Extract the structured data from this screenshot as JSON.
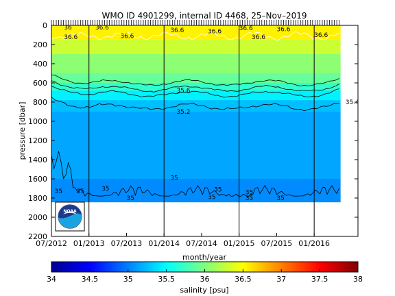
{
  "chart_data": {
    "type": "heatmap",
    "title": "WMO ID 4901299, internal ID 4468, 25–Nov–2019",
    "xlabel": "month/year",
    "ylabel": "pressure [dbar]",
    "colorbar_label": "salinity [psu]",
    "x_tick_labels": [
      "07/2012",
      "01/2013",
      "07/2013",
      "01/2014",
      "07/2014",
      "01/2015",
      "07/2015",
      "01/2016"
    ],
    "y_ticks": [
      0,
      200,
      400,
      600,
      800,
      1000,
      1200,
      1400,
      1600,
      1800,
      2000,
      2200
    ],
    "ylim": [
      2200,
      0
    ],
    "y_reversed": true,
    "xlim_months": [
      0,
      49
    ],
    "colorbar_ticks": [
      34,
      34.5,
      35,
      35.5,
      36,
      36.5,
      37,
      37.5,
      38
    ],
    "colorbar_range": [
      34,
      38
    ],
    "colormap": "jet",
    "year_boundaries": [
      "01/2013",
      "01/2014",
      "01/2015",
      "01/2016"
    ],
    "profile_coverage": {
      "start": "07/2012",
      "end": "05/2016",
      "max_pressure": 1840
    },
    "salinity_profile": [
      {
        "pressure": 0,
        "salinity": 36.6
      },
      {
        "pressure": 150,
        "salinity": 36.5
      },
      {
        "pressure": 300,
        "salinity": 36.1
      },
      {
        "pressure": 500,
        "salinity": 36.0
      },
      {
        "pressure": 600,
        "salinity": 35.8
      },
      {
        "pressure": 680,
        "salinity": 35.6
      },
      {
        "pressure": 780,
        "salinity": 35.3
      },
      {
        "pressure": 900,
        "salinity": 35.2
      },
      {
        "pressure": 1600,
        "salinity": 35.1
      },
      {
        "pressure": 1840,
        "salinity": 35.0
      }
    ],
    "contour_labels": [
      {
        "text": "36",
        "month": 2,
        "pressure": 20
      },
      {
        "text": "36.6",
        "month": 2,
        "pressure": 120
      },
      {
        "text": "36.6",
        "month": 7,
        "pressure": 20
      },
      {
        "text": "36.6",
        "month": 11,
        "pressure": 110
      },
      {
        "text": "36.6",
        "month": 19,
        "pressure": 50
      },
      {
        "text": "36.6",
        "month": 25,
        "pressure": 60
      },
      {
        "text": "36.6",
        "month": 30,
        "pressure": 30
      },
      {
        "text": "36.6",
        "month": 32,
        "pressure": 120
      },
      {
        "text": "36.6",
        "month": 36,
        "pressure": 40
      },
      {
        "text": "36.6",
        "month": 42,
        "pressure": 100
      },
      {
        "text": "35.6",
        "month": 20,
        "pressure": 680
      },
      {
        "text": "35.2",
        "month": 20,
        "pressure": 900
      },
      {
        "text": "35.4",
        "month": 47,
        "pressure": 800
      },
      {
        "text": "35",
        "month": 0.5,
        "pressure": 1730
      },
      {
        "text": "35",
        "month": 4,
        "pressure": 1730
      },
      {
        "text": "35",
        "month": 8,
        "pressure": 1700
      },
      {
        "text": "35",
        "month": 12,
        "pressure": 1800
      },
      {
        "text": "35",
        "month": 19,
        "pressure": 1590
      },
      {
        "text": "35",
        "month": 26,
        "pressure": 1710
      },
      {
        "text": "35",
        "month": 25,
        "pressure": 1790
      },
      {
        "text": "35",
        "month": 31,
        "pressure": 1740
      },
      {
        "text": "35",
        "month": 31,
        "pressure": 1800
      },
      {
        "text": "35",
        "month": 36,
        "pressure": 1800
      }
    ]
  },
  "logo": {
    "text": "NOAA"
  }
}
